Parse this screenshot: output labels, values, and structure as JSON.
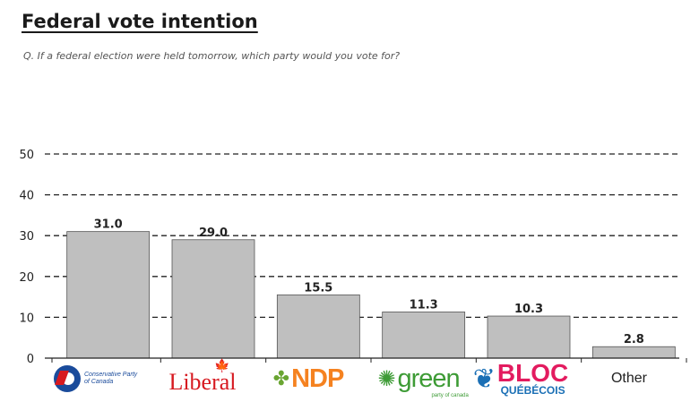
{
  "header": {
    "title": "Federal vote intention",
    "question": "Q. If a federal election were held tomorrow, which party would you vote for?"
  },
  "logos": {
    "conservative_text": "Conservative Party of Canada",
    "liberal_text": "Liberal",
    "ndp_text": "NDP",
    "green_text": "green",
    "green_sub": "party of canada",
    "bloc_text": "BLOC",
    "bloc_sub": "QUÉBÉCOIS",
    "other_text": "Other",
    "leaf_icon": "maple-leaf-icon"
  },
  "chart_data": {
    "type": "bar",
    "title": "Federal vote intention",
    "subtitle": "Q. If a federal election were held tomorrow, which party would you vote for?",
    "categories": [
      "Conservative Party of Canada",
      "Liberal",
      "NDP",
      "green",
      "BLOC QUÉBÉCOIS",
      "Other"
    ],
    "values": [
      31.0,
      29.0,
      15.5,
      11.3,
      10.3,
      2.8
    ],
    "value_labels": [
      "31.0",
      "29.0",
      "15.5",
      "11.3",
      "10.3",
      "2.8"
    ],
    "ylim": [
      0,
      50
    ],
    "yticks": [
      0,
      10,
      20,
      30,
      40,
      50
    ],
    "grid": "dashed horizontal",
    "bar_color": "#bfbfbf",
    "bar_edge_color": "#555555",
    "xlabel": "",
    "ylabel": ""
  }
}
